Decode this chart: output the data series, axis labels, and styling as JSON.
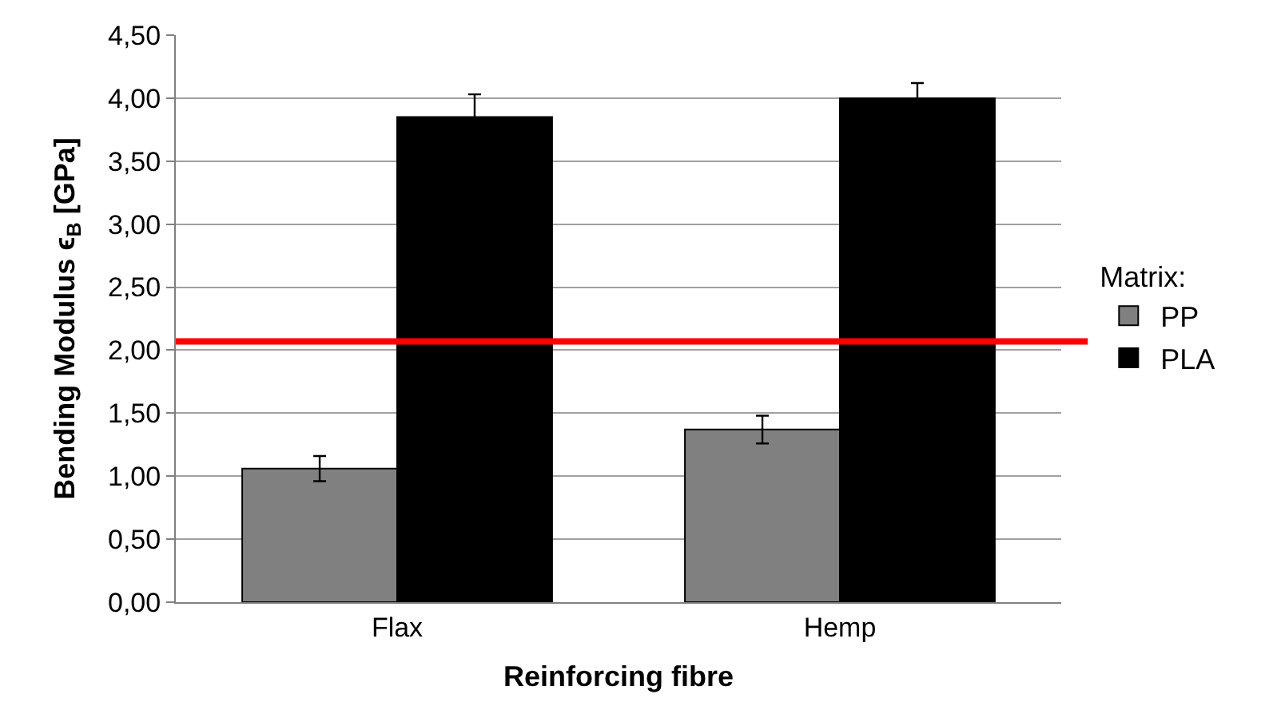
{
  "chart_data": {
    "type": "bar",
    "xlabel": "Reinforcing fibre",
    "ylabel": "Bending Modulus ϵ$_{B}$ [GPa]",
    "legend_title": "Matrix:",
    "categories": [
      "Flax",
      "Hemp"
    ],
    "series": [
      {
        "name": "PP",
        "color": "#808080",
        "values": [
          1.06,
          1.37
        ],
        "errors": [
          0.1,
          0.11
        ]
      },
      {
        "name": "PLA",
        "color": "#000000",
        "values": [
          3.85,
          4.0
        ],
        "errors": [
          0.18,
          0.12
        ]
      }
    ],
    "ylim": [
      0,
      4.5
    ],
    "yticks": [
      {
        "value": 0,
        "label": "0,00"
      },
      {
        "value": 0.5,
        "label": "0,50"
      },
      {
        "value": 1,
        "label": "1,00"
      },
      {
        "value": 1.5,
        "label": "1,50"
      },
      {
        "value": 2,
        "label": "2,00"
      },
      {
        "value": 2.5,
        "label": "2,50"
      },
      {
        "value": 3,
        "label": "3,00"
      },
      {
        "value": 3.5,
        "label": "3,50"
      },
      {
        "value": 4,
        "label": "4,00"
      },
      {
        "value": 4.5,
        "label": "4,50"
      }
    ],
    "ref_lines": [
      {
        "axis": "y",
        "value": 2.07,
        "color": "#ff0000"
      }
    ],
    "grid": "y",
    "legend": "right"
  }
}
